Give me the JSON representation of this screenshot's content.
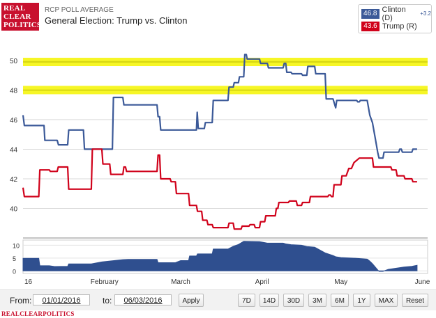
{
  "header": {
    "logo_lines": [
      "REAL",
      "CLEAR",
      "POLITICS"
    ],
    "kicker": "RCP POLL AVERAGE",
    "title": "General Election: Trump vs. Clinton"
  },
  "legend": {
    "clinton_value": "46.8",
    "clinton_label": "Clinton (D)",
    "clinton_spread": "+3.2",
    "trump_value": "43.6",
    "trump_label": "Trump (R)"
  },
  "colors": {
    "clinton": "#3b5998",
    "trump": "#d0021b",
    "highlight": "#f5f500",
    "area": "#2f4f8f"
  },
  "chart_data": {
    "type": "line",
    "title": "General Election: Trump vs. Clinton",
    "xlabel": "",
    "ylabel": "",
    "x_tick_labels": [
      "16",
      "February",
      "March",
      "April",
      "May",
      "June"
    ],
    "y_ticks": [
      40,
      42,
      44,
      46,
      48,
      50
    ],
    "ylim": [
      38,
      51.5
    ],
    "x_range_days": [
      0,
      154
    ],
    "grid": true,
    "highlight_levels": [
      49.9,
      48.0
    ],
    "series": [
      {
        "name": "Clinton (D)",
        "points": [
          [
            0,
            46.3
          ],
          [
            0.5,
            45.6
          ],
          [
            8,
            45.6
          ],
          [
            8.3,
            44.6
          ],
          [
            13,
            44.6
          ],
          [
            13.5,
            44.3
          ],
          [
            17,
            44.3
          ],
          [
            17.4,
            45.3
          ],
          [
            23,
            45.3
          ],
          [
            23.4,
            44.0
          ],
          [
            34,
            44.0
          ],
          [
            34.4,
            47.5
          ],
          [
            38,
            47.5
          ],
          [
            38.4,
            47.0
          ],
          [
            51,
            47.0
          ],
          [
            51.4,
            46.2
          ],
          [
            52,
            46.2
          ],
          [
            52.4,
            45.3
          ],
          [
            66,
            45.3
          ],
          [
            66.3,
            46.5
          ],
          [
            66.7,
            45.4
          ],
          [
            69,
            45.4
          ],
          [
            69.4,
            45.8
          ],
          [
            72,
            45.8
          ],
          [
            72.4,
            47.3
          ],
          [
            78,
            47.3
          ],
          [
            78.4,
            48.2
          ],
          [
            80,
            48.2
          ],
          [
            80.4,
            48.5
          ],
          [
            82,
            48.5
          ],
          [
            82.4,
            48.9
          ],
          [
            84,
            48.9
          ],
          [
            84.4,
            50.4
          ],
          [
            85,
            50.4
          ],
          [
            85.3,
            50.1
          ],
          [
            90,
            50.1
          ],
          [
            90.4,
            49.8
          ],
          [
            93,
            49.8
          ],
          [
            93.4,
            49.5
          ],
          [
            99,
            49.5
          ],
          [
            99.4,
            49.8
          ],
          [
            100,
            49.8
          ],
          [
            100.4,
            49.2
          ],
          [
            102,
            49.2
          ],
          [
            102.4,
            49.1
          ],
          [
            106,
            49.1
          ],
          [
            106.4,
            49.0
          ],
          [
            108,
            49.0
          ],
          [
            108.4,
            49.6
          ],
          [
            111,
            49.6
          ],
          [
            111.4,
            49.1
          ],
          [
            115,
            49.1
          ],
          [
            115.4,
            47.4
          ],
          [
            118,
            47.4
          ],
          [
            119,
            46.8
          ],
          [
            119.4,
            47.3
          ],
          [
            127,
            47.3
          ],
          [
            127.4,
            47.2
          ],
          [
            128,
            47.2
          ],
          [
            128.4,
            47.3
          ],
          [
            131,
            47.3
          ],
          [
            132,
            46.3
          ],
          [
            133,
            45.8
          ],
          [
            134,
            44.8
          ],
          [
            135,
            43.8
          ],
          [
            135.5,
            43.4
          ],
          [
            137,
            43.4
          ],
          [
            137.4,
            43.8
          ],
          [
            143,
            43.8
          ],
          [
            143.4,
            44.0
          ],
          [
            144,
            44.0
          ],
          [
            144.4,
            43.8
          ],
          [
            148,
            43.8
          ],
          [
            148.4,
            44.0
          ],
          [
            150,
            44.0
          ]
        ]
      },
      {
        "name": "Trump (R)",
        "points": [
          [
            0,
            41.4
          ],
          [
            0.5,
            40.8
          ],
          [
            6,
            40.8
          ],
          [
            6.4,
            42.6
          ],
          [
            10,
            42.6
          ],
          [
            10.4,
            42.5
          ],
          [
            13,
            42.5
          ],
          [
            13.4,
            42.8
          ],
          [
            17,
            42.8
          ],
          [
            17.4,
            41.3
          ],
          [
            26,
            41.3
          ],
          [
            26.4,
            44.0
          ],
          [
            30,
            44.0
          ],
          [
            30.4,
            43.0
          ],
          [
            33,
            43.0
          ],
          [
            33.4,
            42.3
          ],
          [
            38,
            42.3
          ],
          [
            38.4,
            42.8
          ],
          [
            39,
            42.8
          ],
          [
            39.4,
            42.5
          ],
          [
            51,
            42.5
          ],
          [
            51.4,
            43.6
          ],
          [
            52,
            43.6
          ],
          [
            52.4,
            42.0
          ],
          [
            56,
            42.0
          ],
          [
            56.4,
            41.8
          ],
          [
            58,
            41.8
          ],
          [
            58.4,
            41.0
          ],
          [
            63,
            41.0
          ],
          [
            63.4,
            40.2
          ],
          [
            66,
            40.2
          ],
          [
            66.4,
            39.8
          ],
          [
            68,
            39.8
          ],
          [
            68.4,
            39.2
          ],
          [
            70,
            39.2
          ],
          [
            70.4,
            38.9
          ],
          [
            72,
            38.9
          ],
          [
            72.4,
            38.7
          ],
          [
            78,
            38.7
          ],
          [
            78.4,
            39.0
          ],
          [
            80,
            39.0
          ],
          [
            80.4,
            38.6
          ],
          [
            83,
            38.6
          ],
          [
            83.4,
            38.8
          ],
          [
            86,
            38.8
          ],
          [
            86.4,
            38.9
          ],
          [
            88,
            38.9
          ],
          [
            88.4,
            38.7
          ],
          [
            90,
            38.7
          ],
          [
            90.4,
            39.1
          ],
          [
            92,
            39.1
          ],
          [
            92.4,
            39.5
          ],
          [
            96,
            39.5
          ],
          [
            96.4,
            40.0
          ],
          [
            97,
            40.0
          ],
          [
            97.4,
            40.4
          ],
          [
            101,
            40.4
          ],
          [
            101.4,
            40.5
          ],
          [
            104,
            40.5
          ],
          [
            104.4,
            40.2
          ],
          [
            106,
            40.2
          ],
          [
            106.4,
            40.4
          ],
          [
            109,
            40.4
          ],
          [
            109.4,
            40.8
          ],
          [
            116,
            40.8
          ],
          [
            116.4,
            40.9
          ],
          [
            117,
            40.9
          ],
          [
            117.4,
            40.8
          ],
          [
            118,
            40.8
          ],
          [
            118.4,
            41.6
          ],
          [
            121,
            41.6
          ],
          [
            121.4,
            42.2
          ],
          [
            123,
            42.2
          ],
          [
            124,
            42.7
          ],
          [
            125,
            42.7
          ],
          [
            126,
            43.1
          ],
          [
            128,
            43.4
          ],
          [
            133,
            43.4
          ],
          [
            133.4,
            42.8
          ],
          [
            140,
            42.8
          ],
          [
            140.4,
            42.6
          ],
          [
            142,
            42.6
          ],
          [
            142.4,
            42.2
          ],
          [
            145,
            42.2
          ],
          [
            145.4,
            42.0
          ],
          [
            148,
            42.0
          ],
          [
            148.4,
            41.8
          ],
          [
            150,
            41.8
          ]
        ]
      },
      {
        "name": "Spread",
        "ylim": [
          -1,
          12
        ],
        "y_ticks": [
          0,
          5,
          10
        ],
        "points": [
          [
            0,
            4.9
          ],
          [
            6,
            4.9
          ],
          [
            6.4,
            2.0
          ],
          [
            10,
            2.0
          ],
          [
            12,
            1.7
          ],
          [
            17,
            1.8
          ],
          [
            17.4,
            2.7
          ],
          [
            26,
            2.7
          ],
          [
            30,
            3.5
          ],
          [
            38,
            4.4
          ],
          [
            40,
            4.5
          ],
          [
            51,
            4.5
          ],
          [
            51.4,
            3.2
          ],
          [
            58,
            3.2
          ],
          [
            60,
            4.0
          ],
          [
            63,
            4.0
          ],
          [
            63.4,
            5.8
          ],
          [
            66,
            5.8
          ],
          [
            66.4,
            6.6
          ],
          [
            72,
            6.6
          ],
          [
            72.4,
            8.5
          ],
          [
            78,
            8.5
          ],
          [
            80,
            9.6
          ],
          [
            82,
            10.3
          ],
          [
            84,
            11.5
          ],
          [
            90,
            11.4
          ],
          [
            93,
            10.8
          ],
          [
            99,
            10.8
          ],
          [
            100,
            10.5
          ],
          [
            102,
            10.2
          ],
          [
            106,
            10.0
          ],
          [
            108,
            9.5
          ],
          [
            111,
            9.2
          ],
          [
            115,
            7.0
          ],
          [
            118,
            6.0
          ],
          [
            119,
            5.5
          ],
          [
            121,
            5.2
          ],
          [
            127,
            4.9
          ],
          [
            131,
            4.6
          ],
          [
            132,
            3.8
          ],
          [
            133,
            2.8
          ],
          [
            134,
            1.6
          ],
          [
            135,
            0.4
          ],
          [
            135.5,
            -0.2
          ],
          [
            137,
            -0.2
          ],
          [
            139,
            0.6
          ],
          [
            143,
            1.2
          ],
          [
            145,
            1.5
          ],
          [
            148,
            1.8
          ],
          [
            150,
            2.2
          ]
        ]
      }
    ]
  },
  "controls": {
    "from_label": "From:",
    "from_value": "01/01/2016",
    "to_label": "to:",
    "to_value": "06/03/2016",
    "apply_label": "Apply",
    "ranges": [
      "7D",
      "14D",
      "30D",
      "3M",
      "6M",
      "1Y",
      "MAX",
      "Reset"
    ]
  },
  "footer": "REALCLEARPOLITICS"
}
